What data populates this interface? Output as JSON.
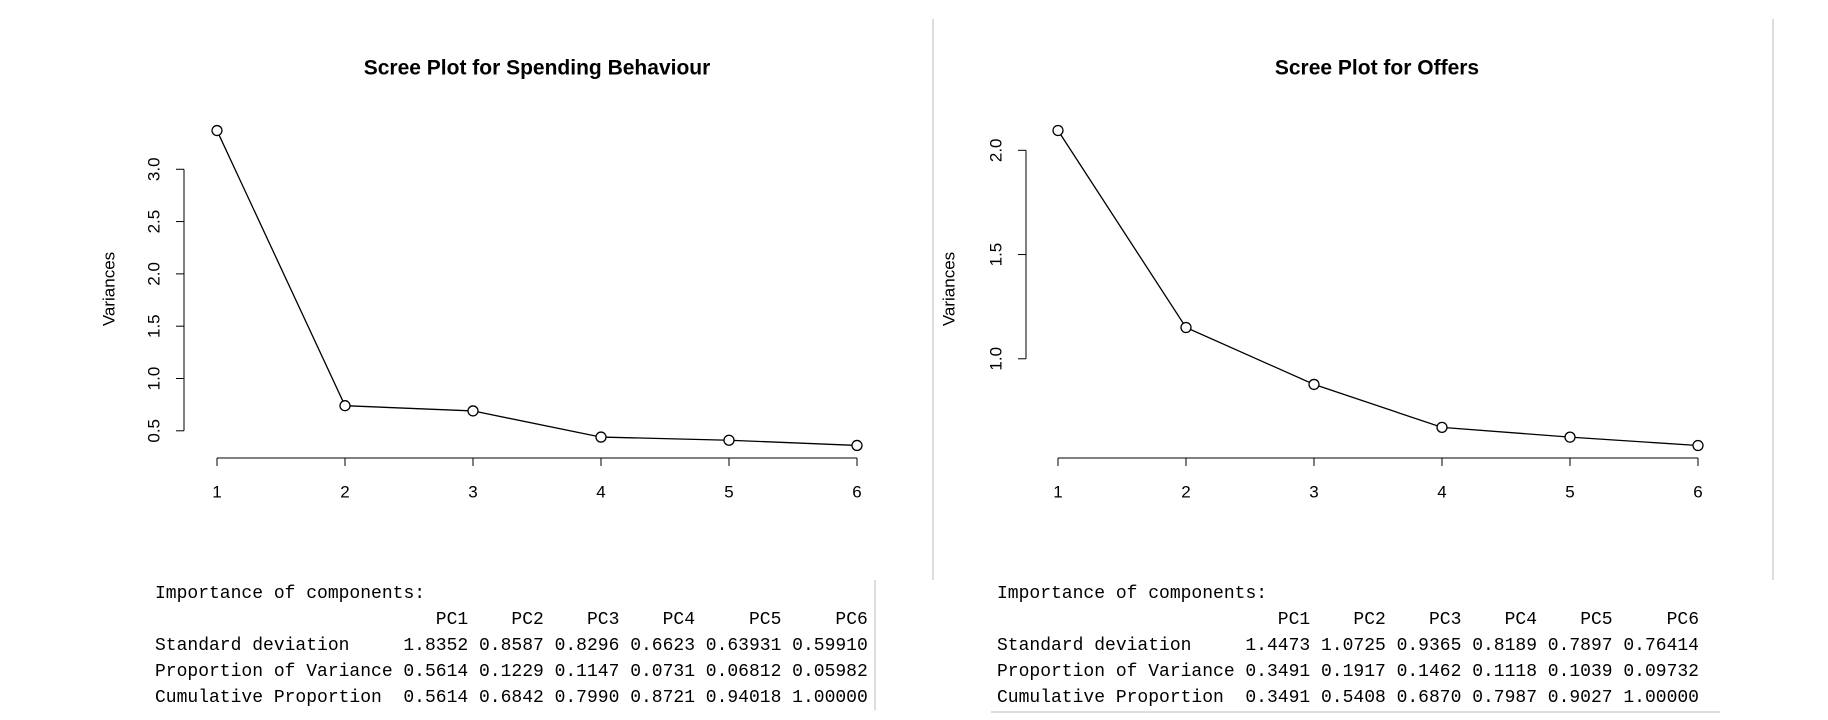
{
  "chart_data": [
    {
      "type": "line",
      "title": "Scree Plot for Spending Behaviour",
      "ylabel": "Variances",
      "x": [
        1,
        2,
        3,
        4,
        5,
        6
      ],
      "values": [
        3.37,
        0.74,
        0.69,
        0.44,
        0.41,
        0.36
      ],
      "color": "#000000",
      "xlim": [
        1,
        6
      ],
      "ylim": [
        0.24,
        3.49
      ],
      "xticks": [
        1,
        2,
        3,
        4,
        5,
        6
      ],
      "yticks": [
        0.5,
        {
          "value": 1,
          "label": "1.0"
        },
        1.5,
        {
          "value": 2,
          "label": "2.0"
        },
        2.5,
        {
          "value": 3,
          "label": "3.0"
        }
      ],
      "summary": {
        "heading": "Importance of components:",
        "columns": [
          "PC1",
          "PC2",
          "PC3",
          "PC4",
          "PC5",
          "PC6"
        ],
        "rows": [
          {
            "label": "Standard deviation",
            "values": [
              "1.8352",
              "0.8587",
              "0.8296",
              "0.6623",
              "0.63931",
              "0.59910"
            ]
          },
          {
            "label": "Proportion of Variance",
            "values": [
              "0.5614",
              "0.1229",
              "0.1147",
              "0.0731",
              "0.06812",
              "0.05982"
            ]
          },
          {
            "label": "Cumulative Proportion",
            "values": [
              "0.5614",
              "0.6842",
              "0.7990",
              "0.8721",
              "0.94018",
              "1.00000"
            ]
          }
        ]
      }
    },
    {
      "type": "line",
      "title": "Scree Plot for Offers",
      "ylabel": "Variances",
      "x": [
        1,
        2,
        3,
        4,
        5,
        6
      ],
      "values": [
        2.095,
        1.15,
        0.877,
        0.671,
        0.624,
        0.584
      ],
      "color": "#000000",
      "xlim": [
        1,
        6
      ],
      "ylim": [
        0.524,
        2.155
      ],
      "xticks": [
        1,
        2,
        3,
        4,
        5,
        6
      ],
      "yticks": [
        {
          "value": 1,
          "label": "1.0"
        },
        1.5,
        {
          "value": 2,
          "label": "2.0"
        }
      ],
      "summary": {
        "heading": "Importance of components:",
        "columns": [
          "PC1",
          "PC2",
          "PC3",
          "PC4",
          "PC5",
          "PC6"
        ],
        "rows": [
          {
            "label": "Standard deviation",
            "values": [
              "1.4473",
              "1.0725",
              "0.9365",
              "0.8189",
              "0.7897",
              "0.76414"
            ]
          },
          {
            "label": "Proportion of Variance",
            "values": [
              "0.3491",
              "0.1917",
              "0.1462",
              "0.1118",
              "0.1039",
              "0.09732"
            ]
          },
          {
            "label": "Cumulative Proportion",
            "values": [
              "0.3491",
              "0.5408",
              "0.6870",
              "0.7987",
              "0.9027",
              "1.00000"
            ]
          }
        ]
      }
    }
  ]
}
